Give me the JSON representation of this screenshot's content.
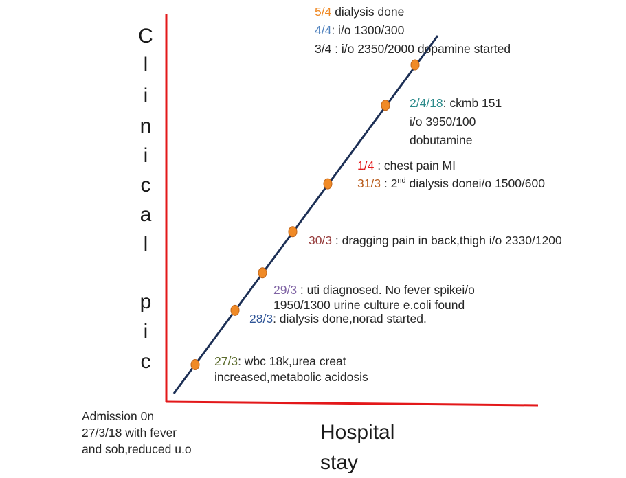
{
  "colors": {
    "axis": "#e3181a",
    "line": "#1c2f55",
    "point": "#f08a26",
    "point_stroke": "#c0651a",
    "d_27_3": "#5b6b2c",
    "d_28_3": "#2f5597",
    "d_29_3": "#7f63a4",
    "d_30_3": "#953a3a",
    "d_31_3": "#b85c1c",
    "d_1_4": "#e3181a",
    "d_2_4": "#2a8a8a",
    "d_3_4": "#262626",
    "d_4_4": "#4f81bd",
    "d_5_4": "#f08a26"
  },
  "y_axis_letters": [
    "C",
    "l",
    "i",
    "n",
    "i",
    "c",
    "a",
    "l",
    "p",
    "i",
    "c"
  ],
  "x_axis_label": "Hospital stay",
  "admission": {
    "lines": [
      "Admission 0n",
      "27/3/18 with fever",
      "and sob,reduced u.o"
    ]
  },
  "events": [
    {
      "date": "27/3",
      "text1": ": wbc 18k,urea creat",
      "text2": "increased,metabolic acidosis"
    },
    {
      "date": "28/3",
      "text1": ": dialysis done,norad started."
    },
    {
      "date": "29/3",
      "text1": " : uti diagnosed. No fever spikei/o",
      "text2": "1950/1300 urine culture e.coli found"
    },
    {
      "date": "30/3",
      "text1": " : dragging pain in back,thigh i/o 2330/1200"
    },
    {
      "date": "31/3",
      "text1": " : 2",
      "sup": "nd",
      "text1b": " dialysis donei/o 1500/600"
    },
    {
      "date": "1/4",
      "text1": " : chest pain MI"
    },
    {
      "date": "2/4/18",
      "text1": ": ckmb 151",
      "text2": "i/o 3950/100",
      "text3": "dobutamine"
    },
    {
      "date": "3/4",
      "text1": " : i/o 2350/2000 dopamine started"
    },
    {
      "date": "4/4",
      "text1": ": i/o 1300/300"
    },
    {
      "date": "5/4",
      "text1": " dialysis done"
    }
  ],
  "chart_data": {
    "type": "line",
    "title": "",
    "xlabel": "Hospital stay",
    "ylabel": "Clinical pic",
    "x": [
      "27/3",
      "28/3",
      "29/3",
      "30/3",
      "31/3/1/4",
      "2/4",
      "3/4-5/4"
    ],
    "series": [
      {
        "values": [
          1,
          2,
          3,
          4,
          5,
          6,
          7
        ]
      }
    ]
  }
}
